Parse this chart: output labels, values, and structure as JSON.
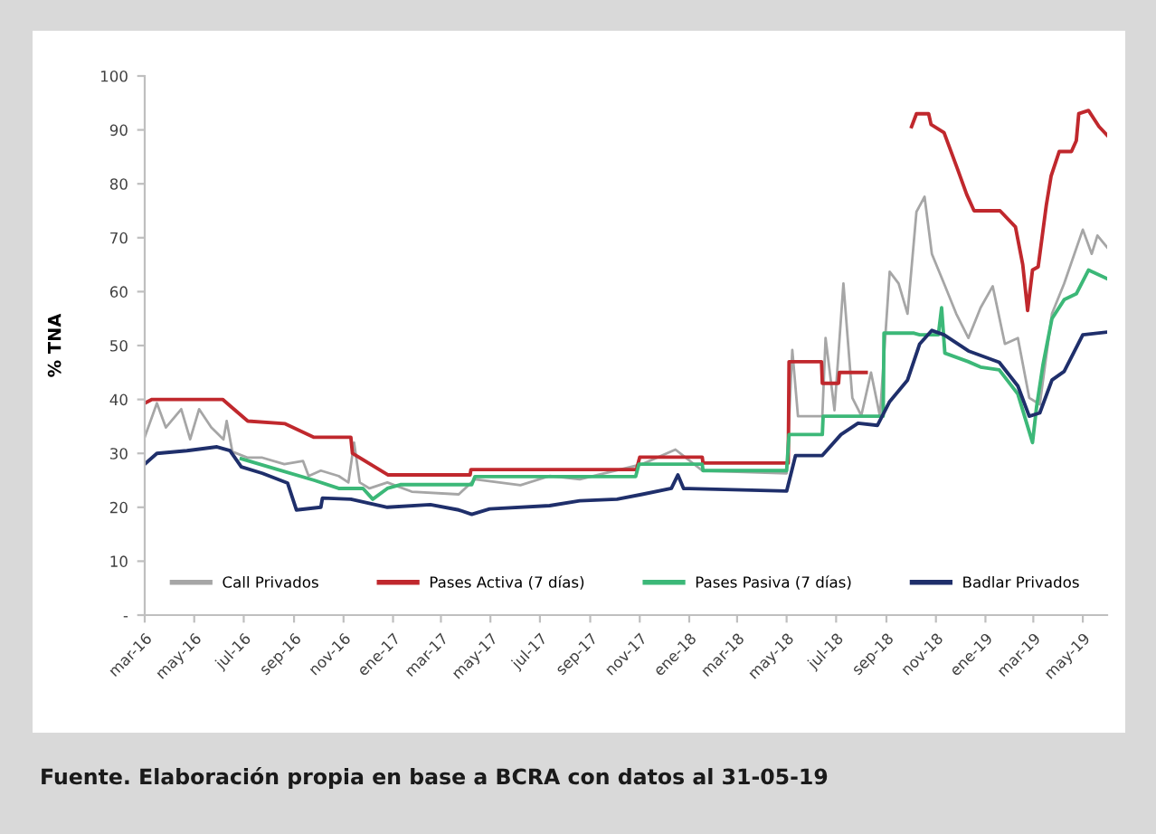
{
  "chart_data": {
    "type": "line",
    "ylabel": "% TNA",
    "annotations": [
      "Fuente. Elaboración propia en base a BCRA con datos al 31-05-19"
    ],
    "xlim": [
      "2016-03-01",
      "2019-05-31"
    ],
    "xticks": [
      {
        "value": "2016-03-01",
        "label": "mar-16"
      },
      {
        "value": "2016-05-01",
        "label": "may-16"
      },
      {
        "value": "2016-07-01",
        "label": "jul-16"
      },
      {
        "value": "2016-09-01",
        "label": "sep-16"
      },
      {
        "value": "2016-11-01",
        "label": "nov-16"
      },
      {
        "value": "2017-01-01",
        "label": "ene-17"
      },
      {
        "value": "2017-03-01",
        "label": "mar-17"
      },
      {
        "value": "2017-05-01",
        "label": "may-17"
      },
      {
        "value": "2017-07-01",
        "label": "jul-17"
      },
      {
        "value": "2017-09-01",
        "label": "sep-17"
      },
      {
        "value": "2017-11-01",
        "label": "nov-17"
      },
      {
        "value": "2018-01-01",
        "label": "ene-18"
      },
      {
        "value": "2018-03-01",
        "label": "mar-18"
      },
      {
        "value": "2018-05-01",
        "label": "may-18"
      },
      {
        "value": "2018-07-01",
        "label": "jul-18"
      },
      {
        "value": "2018-09-01",
        "label": "sep-18"
      },
      {
        "value": "2018-11-01",
        "label": "nov-18"
      },
      {
        "value": "2019-01-01",
        "label": "ene-19"
      },
      {
        "value": "2019-03-01",
        "label": "mar-19"
      },
      {
        "value": "2019-05-01",
        "label": "may-19"
      }
    ],
    "ylim": [
      0,
      100
    ],
    "yticks": [
      {
        "value": 0,
        "label": "-"
      },
      10,
      20,
      30,
      40,
      50,
      60,
      70,
      80,
      90,
      100
    ],
    "grid": false,
    "legend": "bottom",
    "marker": "none",
    "line_style": "solid",
    "series": [
      {
        "name": "Call Privados",
        "color": "#a6a6a6",
        "x": [
          "2016-03-01",
          "2016-03-16",
          "2016-03-27",
          "2016-04-15",
          "2016-04-26",
          "2016-05-07",
          "2016-05-22",
          "2016-06-06",
          "2016-06-10",
          "2016-06-17",
          "2016-07-06",
          "2016-07-24",
          "2016-08-20",
          "2016-09-12",
          "2016-09-19",
          "2016-10-04",
          "2016-10-26",
          "2016-11-07",
          "2016-11-14",
          "2016-11-21",
          "2016-12-03",
          "2016-12-25",
          "2017-01-24",
          "2017-03-23",
          "2017-04-12",
          "2017-06-07",
          "2017-07-13",
          "2017-08-19",
          "2017-11-04",
          "2017-12-15",
          "2018-01-17",
          "2018-05-01",
          "2018-05-08",
          "2018-05-15",
          "2018-06-14",
          "2018-06-18",
          "2018-06-29",
          "2018-07-10",
          "2018-07-21",
          "2018-08-01",
          "2018-08-13",
          "2018-08-24",
          "2018-09-05",
          "2018-09-16",
          "2018-09-27",
          "2018-10-08",
          "2018-10-18",
          "2018-10-27",
          "2018-11-11",
          "2018-11-26",
          "2018-12-11",
          "2018-12-26",
          "2019-01-10",
          "2019-01-25",
          "2019-02-10",
          "2019-02-24",
          "2019-03-09",
          "2019-03-24",
          "2019-04-08",
          "2019-05-01",
          "2019-05-12",
          "2019-05-19",
          "2019-05-31"
        ],
        "values": [
          33,
          39.3,
          34.8,
          38.2,
          32.6,
          38.2,
          34.8,
          32.6,
          36,
          30.3,
          29.2,
          29.2,
          28,
          28.6,
          25.8,
          26.8,
          25.8,
          24.6,
          32,
          24.6,
          23.5,
          24.6,
          22.9,
          22.4,
          25.2,
          24.1,
          25.8,
          25.2,
          28,
          30.7,
          26.8,
          26.3,
          49.2,
          36.9,
          36.9,
          51.4,
          38,
          61.5,
          40.3,
          37,
          45,
          36.9,
          63.7,
          61.5,
          55.9,
          74.8,
          77.6,
          67,
          61.5,
          55.9,
          51.4,
          57,
          61,
          50.3,
          51.4,
          40.3,
          39.1,
          55.9,
          61.5,
          71.5,
          67,
          70.4,
          68.2
        ]
      },
      {
        "name": "Pases Activa (7 días)",
        "color": "#c0282d",
        "x": [
          "2016-03-01",
          "2016-03-10",
          "2016-06-05",
          "2016-07-06",
          "2016-08-21",
          "2016-09-25",
          "2016-11-10",
          "2016-11-12",
          "2016-12-26",
          "2017-04-06",
          "2017-04-07",
          "2017-10-28",
          "2017-11-01",
          "2018-01-17",
          "2018-01-18",
          "2018-05-03",
          "2018-05-04",
          "2018-06-13",
          "2018-06-14",
          "2018-07-04",
          "2018-07-05",
          "2018-08-07",
          "2018-09-01",
          "2018-10-02",
          "2018-10-08",
          "2018-10-23",
          "2018-10-26",
          "2018-11-11",
          "2018-11-27",
          "2018-12-09",
          "2018-12-18",
          "2019-01-19",
          "2019-02-07",
          "2019-02-16",
          "2019-02-22",
          "2019-02-28",
          "2019-03-07",
          "2019-03-17",
          "2019-03-23",
          "2019-04-02",
          "2019-04-17",
          "2019-04-23",
          "2019-04-26",
          "2019-05-08",
          "2019-05-21",
          "2019-05-31"
        ],
        "values": [
          39.3,
          40,
          40,
          36,
          35.5,
          33,
          33,
          30,
          26,
          26,
          27,
          27,
          29.3,
          29.3,
          28.2,
          28.2,
          47,
          47,
          43,
          43,
          45,
          45,
          null,
          90.6,
          93,
          93,
          91,
          89.5,
          83,
          78,
          75,
          75,
          72,
          65,
          56.5,
          64,
          64.6,
          76,
          81.5,
          86,
          86,
          88,
          93,
          93.6,
          90.6,
          89
        ]
      },
      {
        "name": "Pases Pasiva (7 días)",
        "color": "#3cb878",
        "x": [
          "2016-06-28",
          "2016-08-12",
          "2016-09-26",
          "2016-10-26",
          "2016-11-25",
          "2016-12-07",
          "2016-12-25",
          "2017-01-10",
          "2017-04-08",
          "2017-04-12",
          "2017-10-27",
          "2017-10-31",
          "2018-01-17",
          "2018-01-18",
          "2018-05-01",
          "2018-05-04",
          "2018-06-14",
          "2018-06-15",
          "2018-08-28",
          "2018-08-29",
          "2018-10-05",
          "2018-10-12",
          "2018-11-04",
          "2018-11-08",
          "2018-11-12",
          "2018-12-11",
          "2018-12-26",
          "2019-01-18",
          "2019-02-10",
          "2019-02-21",
          "2019-02-28",
          "2019-03-05",
          "2019-03-13",
          "2019-03-24",
          "2019-04-08",
          "2019-04-23",
          "2019-05-08",
          "2019-05-31"
        ],
        "values": [
          29,
          27,
          25,
          23.5,
          23.5,
          21.5,
          23.5,
          24.2,
          24.2,
          25.7,
          25.7,
          28,
          28,
          26.8,
          26.8,
          33.5,
          33.5,
          36.9,
          36.9,
          52.3,
          52.3,
          52,
          52,
          57,
          48.6,
          47,
          46,
          45.5,
          41,
          35.5,
          32,
          38.6,
          46.5,
          55,
          58.5,
          59.6,
          64,
          62.4
        ]
      },
      {
        "name": "Badlar Privados",
        "color": "#1f2f6b",
        "x": [
          "2016-03-01",
          "2016-03-16",
          "2016-04-22",
          "2016-05-29",
          "2016-06-14",
          "2016-06-28",
          "2016-07-24",
          "2016-08-24",
          "2016-09-04",
          "2016-10-04",
          "2016-10-06",
          "2016-11-10",
          "2016-12-25",
          "2017-02-16",
          "2017-03-23",
          "2017-04-08",
          "2017-04-30",
          "2017-07-13",
          "2017-08-19",
          "2017-10-04",
          "2017-11-04",
          "2017-12-10",
          "2017-12-18",
          "2017-12-25",
          "2018-05-01",
          "2018-05-12",
          "2018-06-14",
          "2018-07-07",
          "2018-07-28",
          "2018-08-21",
          "2018-09-05",
          "2018-09-27",
          "2018-10-12",
          "2018-10-27",
          "2018-11-11",
          "2018-12-11",
          "2019-01-18",
          "2019-02-10",
          "2019-02-24",
          "2019-03-09",
          "2019-03-24",
          "2019-04-08",
          "2019-05-01",
          "2019-05-31"
        ],
        "values": [
          28,
          30,
          30.5,
          31.2,
          30.5,
          27.5,
          26.3,
          24.5,
          19.5,
          20,
          21.7,
          21.5,
          20,
          20.5,
          19.5,
          18.7,
          19.7,
          20.3,
          21.2,
          21.5,
          22.4,
          23.5,
          26,
          23.5,
          23,
          29.6,
          29.6,
          33.5,
          35.6,
          35.2,
          39.6,
          43.6,
          50.3,
          52.8,
          52,
          49,
          46.9,
          42.5,
          36.9,
          37.5,
          43.6,
          45.2,
          52,
          52.5
        ]
      }
    ]
  }
}
